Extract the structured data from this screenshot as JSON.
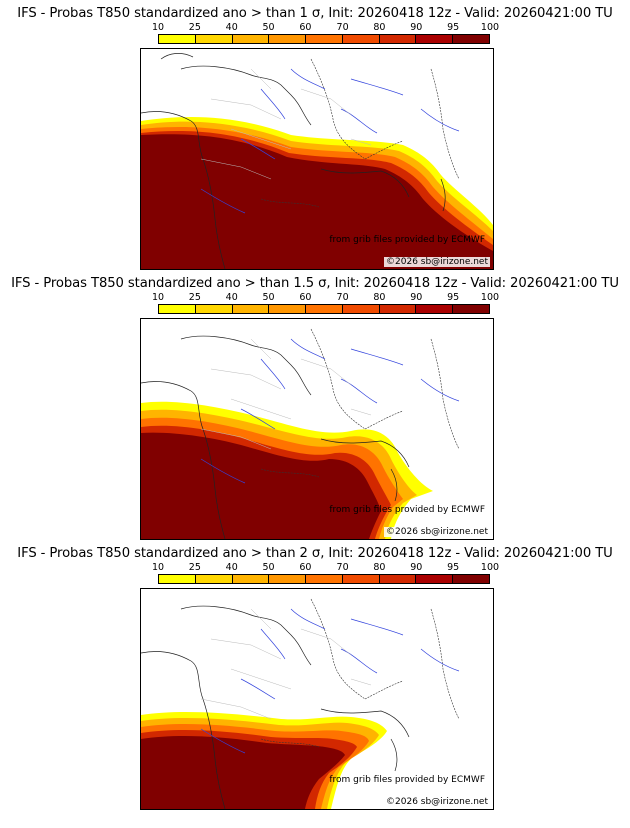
{
  "legend": {
    "ticks": [
      "10",
      "25",
      "40",
      "50",
      "60",
      "70",
      "80",
      "90",
      "95",
      "100"
    ],
    "colors": [
      "#ffff00",
      "#ffd700",
      "#ffb400",
      "#ff9600",
      "#ff7300",
      "#f04b00",
      "#d22800",
      "#aa0000",
      "#800000"
    ]
  },
  "panels": [
    {
      "title": "IFS - Probas T850  standardized ano > than 1 σ, Init: 20260418 12z - Valid: 20260421:00 TU",
      "credit": "from grib files provided by ECMWF",
      "copyright": "©2026 sb@irizone.net"
    },
    {
      "title": "IFS - Probas T850  standardized ano > than 1.5 σ, Init: 20260418 12z - Valid: 20260421:00 TU",
      "credit": "from grib files provided by ECMWF",
      "copyright": "©2026 sb@irizone.net"
    },
    {
      "title": "IFS - Probas T850  standardized ano > than 2 σ, Init: 20260418 12z - Valid: 20260421:00 TU",
      "credit": "from grib files provided by ECMWF",
      "copyright": "©2026 sb@irizone.net"
    }
  ]
}
